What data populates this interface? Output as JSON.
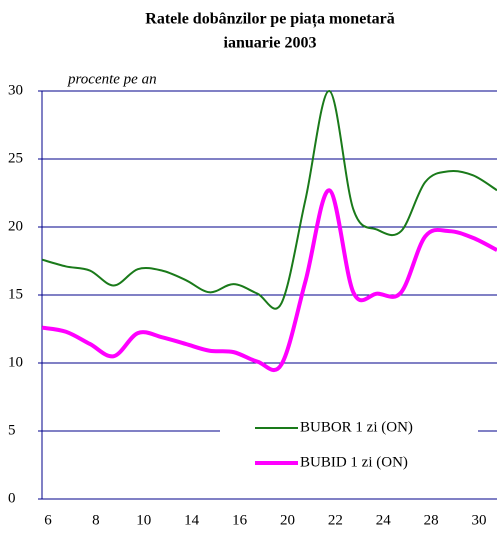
{
  "chart_data": {
    "type": "line",
    "title": [
      "Ratele dobânzilor pe piața monetară",
      "ianuarie  2003"
    ],
    "subtitle": "procente pe an",
    "categories": [
      "6",
      null,
      "8",
      null,
      "10",
      null,
      "14",
      null,
      "16",
      null,
      "20",
      null,
      "22",
      null,
      "24",
      null,
      "28",
      null,
      "30",
      null
    ],
    "series": [
      {
        "name": "BUBOR 1 zi (ON)",
        "color": "#1a7a1a",
        "width": 2,
        "values": [
          17.6,
          17.1,
          16.8,
          15.7,
          16.9,
          16.8,
          16.1,
          15.2,
          15.8,
          15.1,
          14.4,
          22,
          30,
          21.3,
          19.8,
          19.7,
          23.3,
          24.1,
          23.8,
          22.7
        ]
      },
      {
        "name": "BUBID 1 zi (ON)",
        "color": "#ff00ff",
        "width": 4,
        "values": [
          12.6,
          12.3,
          11.4,
          10.5,
          12.2,
          11.9,
          11.4,
          10.9,
          10.8,
          10.1,
          9.9,
          16,
          22.7,
          15.2,
          15.1,
          15.2,
          19.3,
          19.7,
          19.2,
          18.3
        ]
      }
    ],
    "ylim": [
      0,
      30
    ],
    "yticks": [
      0,
      5,
      10,
      15,
      20,
      25,
      30
    ],
    "grid": true,
    "legend": "lower right"
  }
}
